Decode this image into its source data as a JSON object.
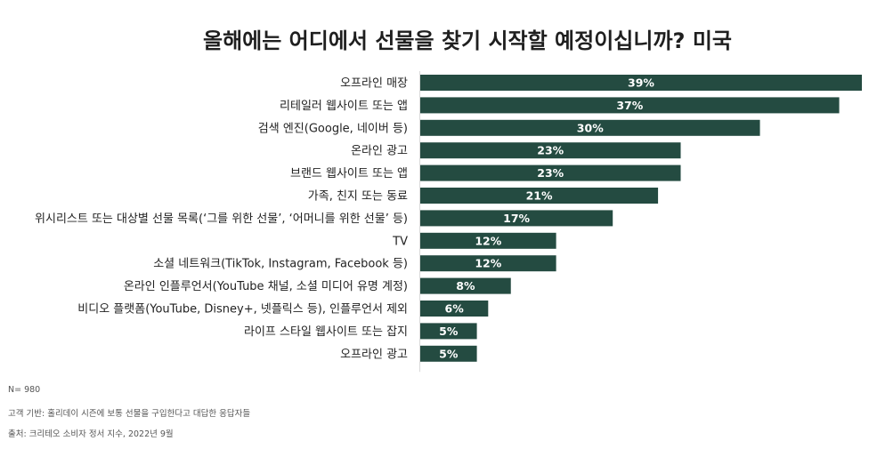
{
  "colors": {
    "bar": "#244b41",
    "axis": "#d9d9d9",
    "value_label": "#ffffff"
  },
  "chart_data": {
    "type": "bar",
    "orientation": "horizontal",
    "title": "올해에는 어디에서 선물을 찾기 시작할 예정이십니까? 미국",
    "categories": [
      "오프라인 매장",
      "리테일러 웹사이트 또는 앱",
      "검색 엔진(Google, 네이버 등)",
      "온라인 광고",
      "브랜드 웹사이트 또는 앱",
      "가족, 친지 또는 동료",
      "위시리스트 또는 대상별 선물 목록(‘그를 위한 선물’, ‘어머니를 위한 선물’ 등)",
      "TV",
      "소셜 네트워크(TikTok, Instagram, Facebook 등)",
      "온라인 인플루언서(YouTube 채널, 소셜 미디어 유명 계정)",
      "비디오 플랫폼(YouTube, Disney+, 넷플릭스 등), 인플루언서 제외",
      "라이프 스타일 웹사이트 또는 잡지",
      "오프라인 광고"
    ],
    "values": [
      39,
      37,
      30,
      23,
      23,
      21,
      17,
      12,
      12,
      8,
      6,
      5,
      5
    ],
    "value_labels": [
      "39%",
      "37%",
      "30%",
      "23%",
      "23%",
      "21%",
      "17%",
      "12%",
      "12%",
      "8%",
      "6%",
      "5%",
      "5%"
    ],
    "unit": "%",
    "xlim": [
      0,
      39
    ],
    "grid": false,
    "legend": "none"
  },
  "footnotes": {
    "n": "N= 980",
    "note": "고객 기반: 홀리데이 시즌에 보통 선물을 구입한다고 대답한 응답자들",
    "source": "출처: 크리테오 소비자 정서 지수, 2022년 9월"
  }
}
